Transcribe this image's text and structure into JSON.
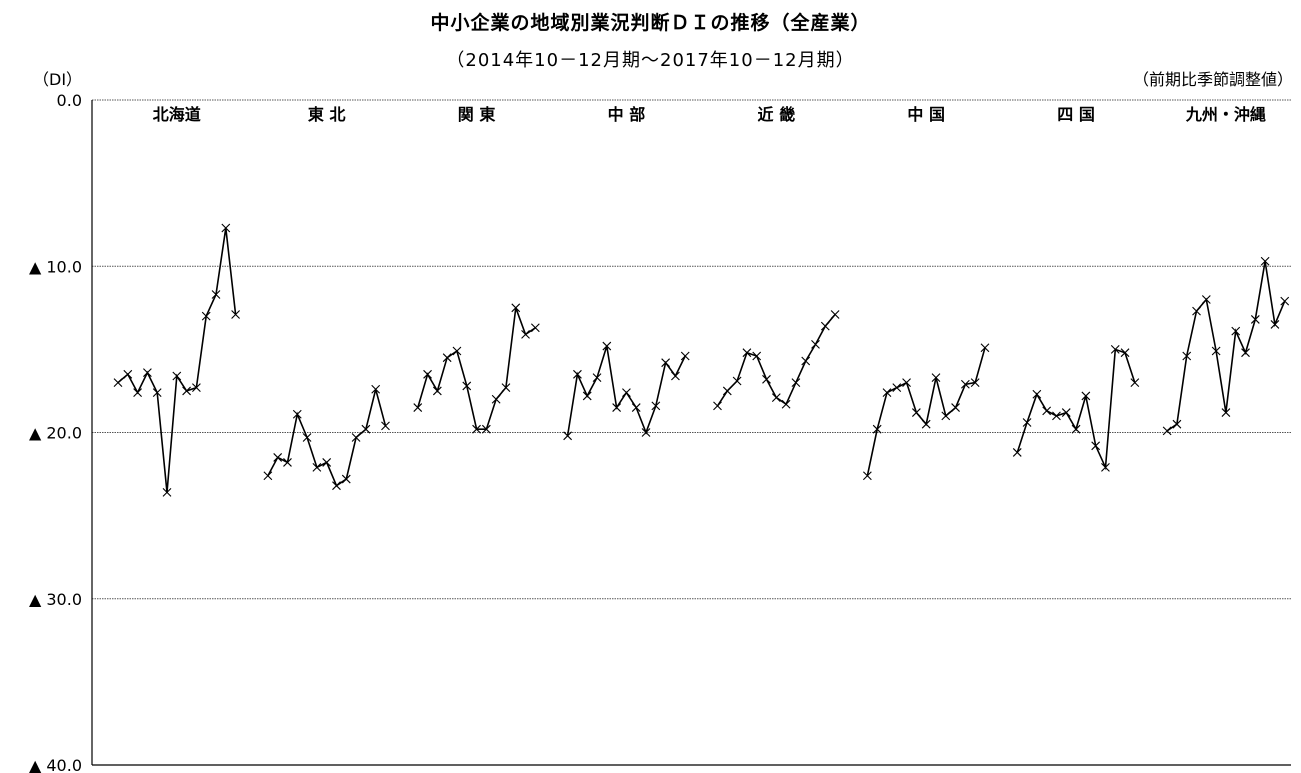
{
  "title": "中小企業の地域別業況判断ＤＩの推移（全産業）",
  "subtitle": "（2014年10－12月期～2017年10－12月期）",
  "y_unit_label": "（DI）",
  "adjustment_note": "（前期比季節調整値）",
  "chart_data": {
    "type": "line",
    "title": "中小企業の地域別業況判断ＤＩの推移（全産業）",
    "subtitle": "（2014年10－12月期～2017年10－12月期）",
    "ylabel": "（DI）",
    "note": "（前期比季節調整値）",
    "ylim": [
      -40,
      0
    ],
    "y_ticks": [
      0,
      -10,
      -20,
      -30,
      -40
    ],
    "y_tick_labels": [
      "0.0",
      "▲ 10.0",
      "▲ 20.0",
      "▲ 30.0",
      "▲ 40.0"
    ],
    "grid": true,
    "marker": "x",
    "series": [
      {
        "name": "北海道",
        "values": [
          -17.0,
          -16.5,
          -17.6,
          -16.4,
          -17.6,
          -23.6,
          -16.6,
          -17.5,
          -17.3,
          -13.0,
          -11.7,
          -7.7,
          -12.9
        ]
      },
      {
        "name": "東 北",
        "values": [
          -22.6,
          -21.5,
          -21.8,
          -18.9,
          -20.3,
          -22.1,
          -21.8,
          -23.2,
          -22.8,
          -20.3,
          -19.8,
          -17.4,
          -19.6
        ]
      },
      {
        "name": "関 東",
        "values": [
          -18.5,
          -16.5,
          -17.5,
          -15.5,
          -15.1,
          -17.2,
          -19.8,
          -19.8,
          -18.0,
          -17.3,
          -12.5,
          -14.1,
          -13.7
        ]
      },
      {
        "name": "中 部",
        "values": [
          -20.2,
          -16.5,
          -17.8,
          -16.7,
          -14.8,
          -18.5,
          -17.6,
          -18.5,
          -20.0,
          -18.4,
          -15.8,
          -16.6,
          -15.4
        ]
      },
      {
        "name": "近 畿",
        "values": [
          -18.4,
          -17.5,
          -16.9,
          -15.2,
          -15.4,
          -16.8,
          -17.9,
          -18.3,
          -17.0,
          -15.7,
          -14.7,
          -13.6,
          -12.9
        ]
      },
      {
        "name": "中 国",
        "values": [
          -22.6,
          -19.8,
          -17.6,
          -17.3,
          -17.0,
          -18.8,
          -19.5,
          -16.7,
          -19.0,
          -18.5,
          -17.1,
          -17.0,
          -14.9
        ]
      },
      {
        "name": "四 国",
        "values": [
          -21.2,
          -19.4,
          -17.7,
          -18.7,
          -19.0,
          -18.8,
          -19.8,
          -17.8,
          -20.8,
          -22.1,
          -15.0,
          -15.2,
          -17.0
        ]
      },
      {
        "name": "九州・沖縄",
        "values": [
          -19.9,
          -19.5,
          -15.4,
          -12.7,
          -12.0,
          -15.1,
          -18.8,
          -13.9,
          -15.2,
          -13.2,
          -9.7,
          -13.5,
          -12.1
        ]
      }
    ]
  }
}
